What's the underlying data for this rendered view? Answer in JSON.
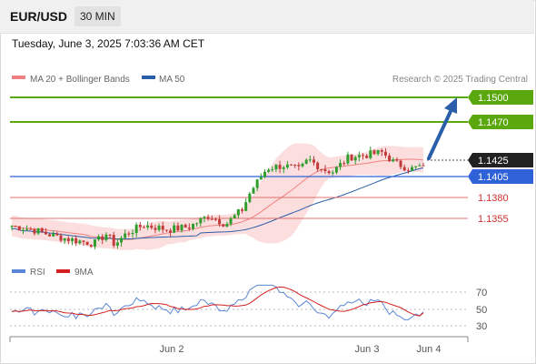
{
  "header": {
    "symbol": "EUR/USD",
    "timeframe": "30 MIN"
  },
  "timestamp": "Tuesday, June 3, 2025 7:03:36 AM CET",
  "legend": {
    "bollinger": "MA 20 + Bollinger Bands",
    "ma50": "MA 50",
    "credit": "Research © 2025 Trading Central"
  },
  "levels": [
    {
      "label": "1.1500",
      "kind": "target"
    },
    {
      "label": "1.1470",
      "kind": "target"
    },
    {
      "label": "1.1425",
      "kind": "current"
    },
    {
      "label": "1.1405",
      "kind": "pivot"
    },
    {
      "label": "1.1380",
      "kind": "support"
    },
    {
      "label": "1.1355",
      "kind": "support"
    }
  ],
  "rsi_panel": {
    "legend_rsi": "RSI",
    "legend_ma": "9MA",
    "ticks": [
      "70",
      "50",
      "30"
    ]
  },
  "x_axis": {
    "labels": [
      "Jun 2",
      "Jun 3",
      "Jun 4"
    ]
  },
  "colors": {
    "up": "#2e9e2e",
    "down": "#c23b3b",
    "band": "#fbd3d3",
    "ma20": "#f08080",
    "ma50": "#2b5ea8",
    "target": "#5aa80e",
    "pivot": "#2f62d9",
    "support": "#e05b5b",
    "rsi": "#5b86d6",
    "rsi_ma": "#d42020"
  },
  "chart_data": {
    "type": "candlestick",
    "y_unit": "EUR/USD price",
    "ylim": [
      1.1318,
      1.151
    ],
    "price_start": 1.1355,
    "price_end": 1.1425,
    "levels": {
      "target2": 1.15,
      "target1": 1.147,
      "current": 1.1425,
      "pivot": 1.1405,
      "support1": 1.138,
      "support2": 1.1355
    },
    "rsi": {
      "ylim": [
        20,
        80
      ],
      "ticks": [
        70,
        50,
        30
      ],
      "last": 47,
      "ma_last": 46
    }
  }
}
